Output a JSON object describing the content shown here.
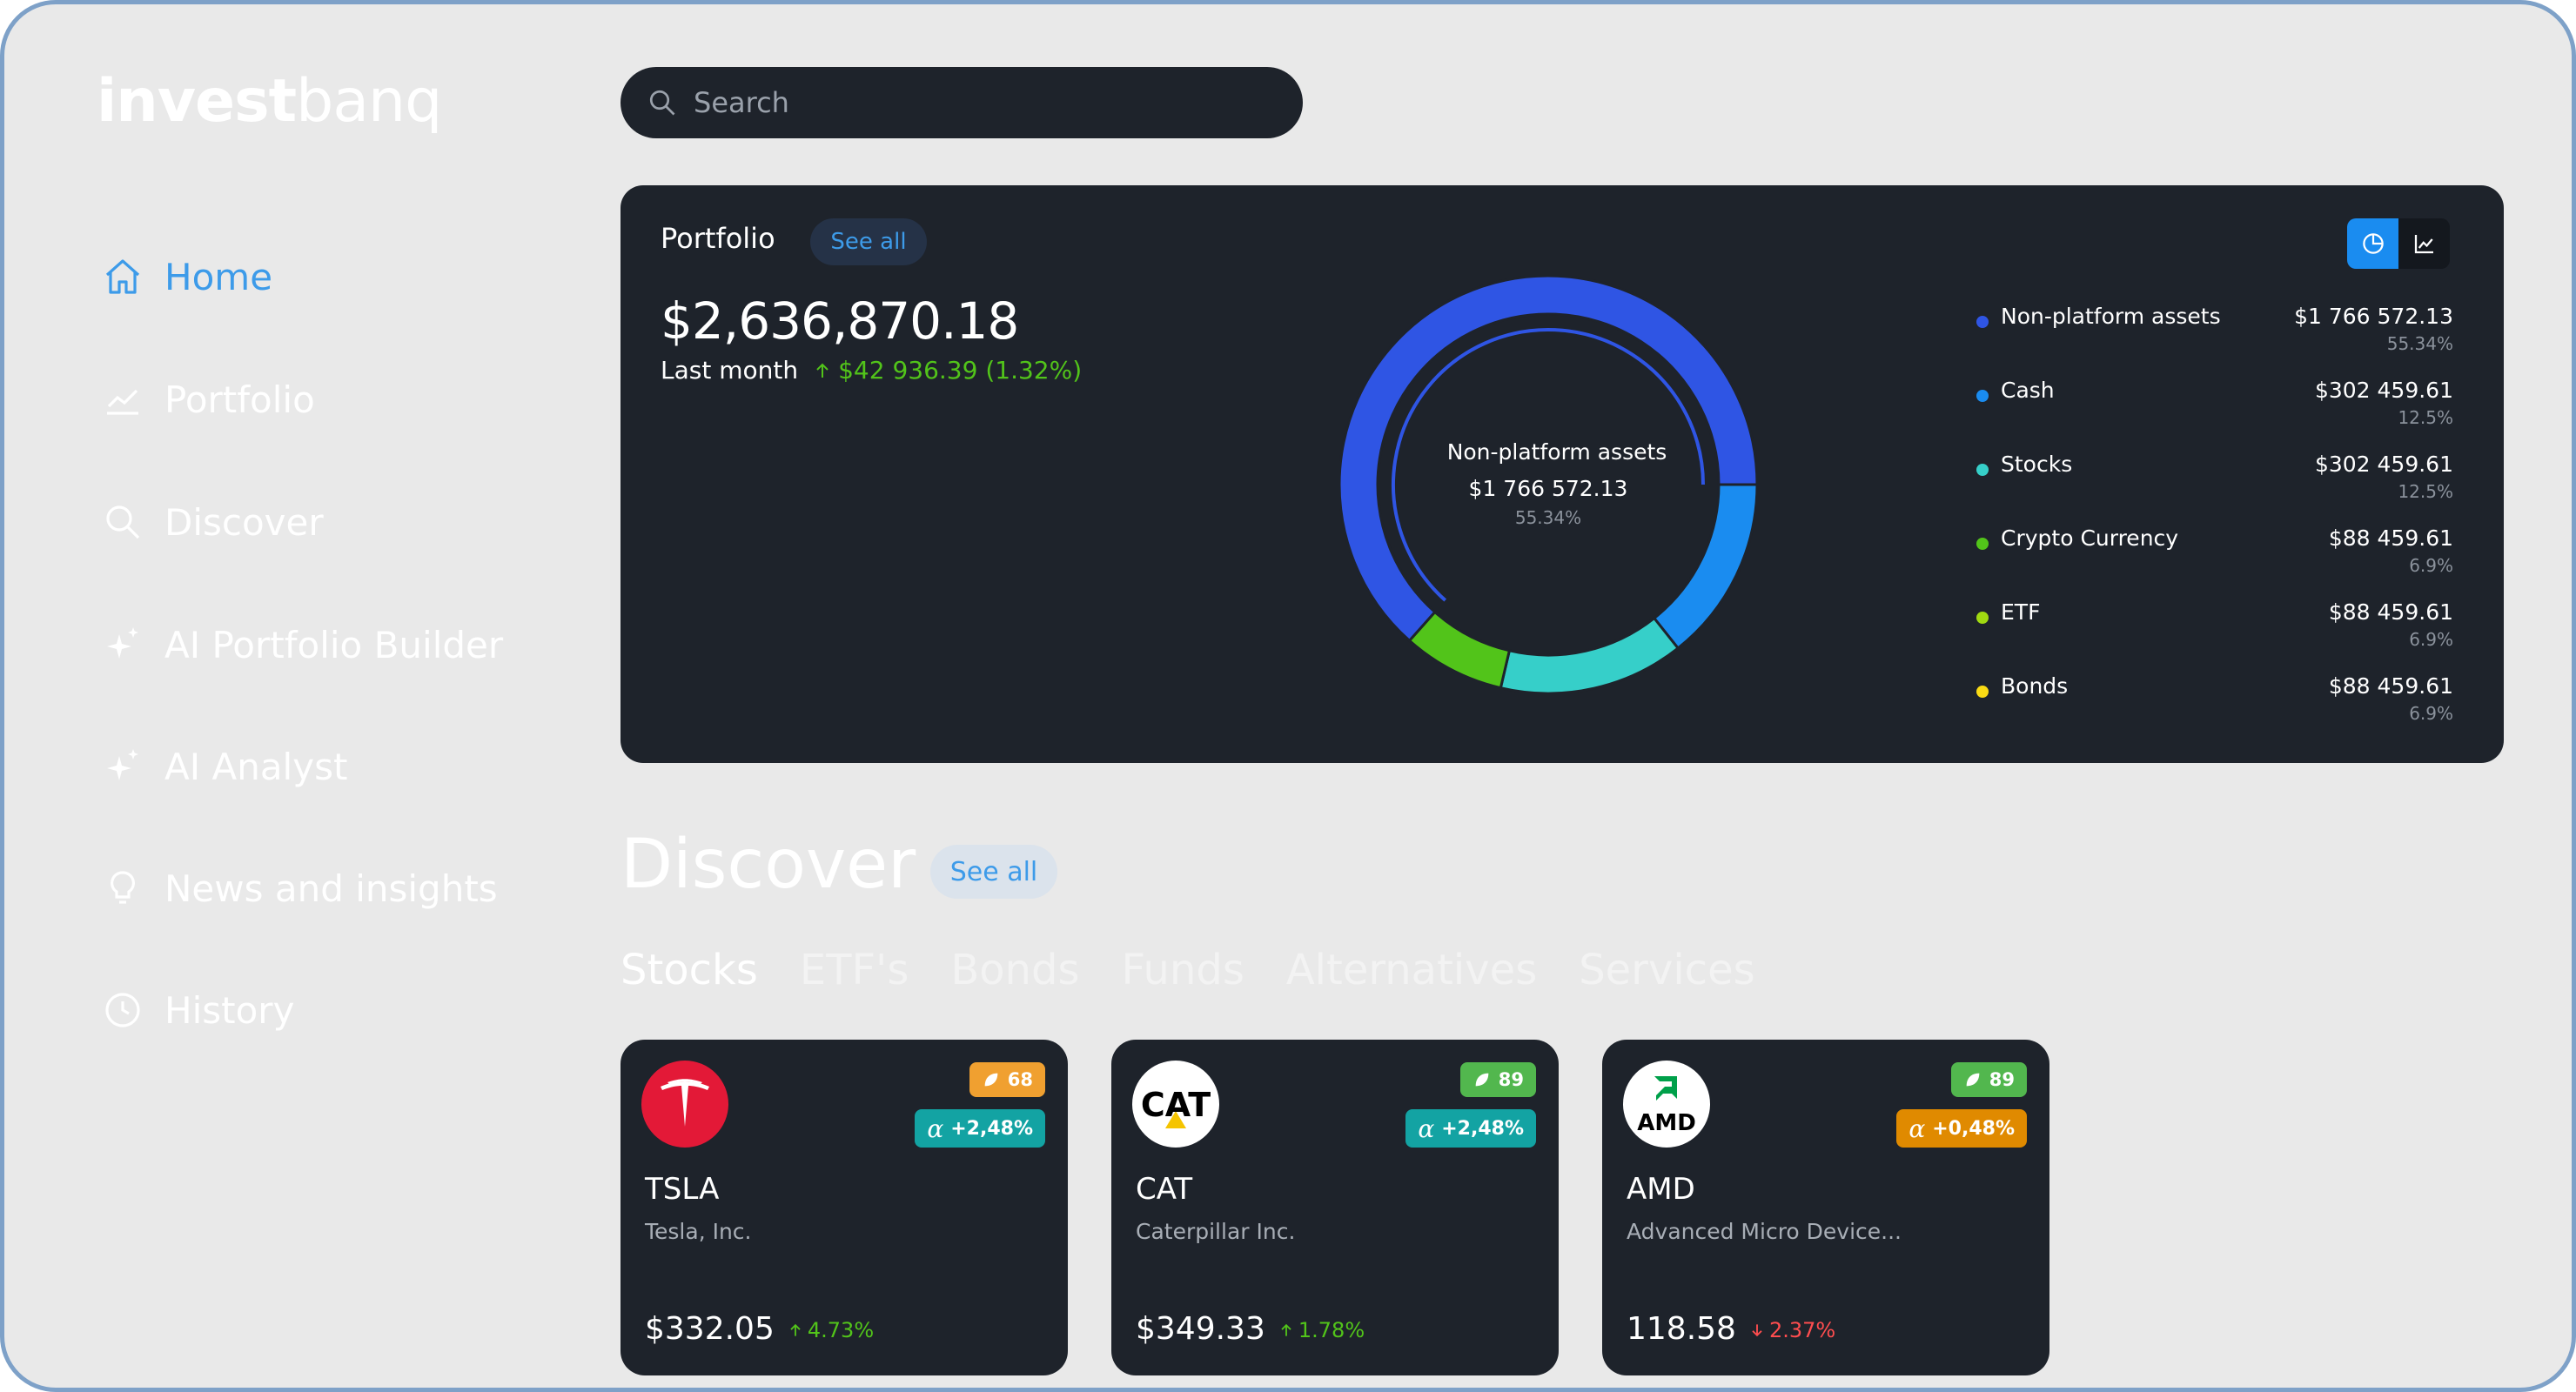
{
  "brand": {
    "bold": "invest",
    "light": "banq"
  },
  "nav": [
    {
      "label": "Home",
      "icon": "home-icon",
      "active": true
    },
    {
      "label": "Portfolio",
      "icon": "chart-line-icon"
    },
    {
      "label": "Discover",
      "icon": "search-icon"
    },
    {
      "label": "AI Portfolio Builder",
      "icon": "sparkle-icon"
    },
    {
      "label": "AI Analyst",
      "icon": "sparkle-icon"
    },
    {
      "label": "News and insights",
      "icon": "lightbulb-icon"
    },
    {
      "label": "History",
      "icon": "clock-icon"
    }
  ],
  "search": {
    "placeholder": "Search"
  },
  "portfolio": {
    "title": "Portfolio",
    "see_all": "See all",
    "total": "$2,636,870.18",
    "period": "Last month",
    "change": "$42 936.39 (1.32%)",
    "change_direction": "up",
    "view_toggle": {
      "active": "pie-chart-icon",
      "options": [
        "pie-chart-icon",
        "line-chart-icon"
      ]
    },
    "donut_center": {
      "label": "Non-platform assets",
      "value": "$1 766 572.13",
      "pct": "55.34%"
    },
    "allocation": [
      {
        "name": "Non-platform assets",
        "value": "$1 766 572.13",
        "pct": "55.34%",
        "share": 55.34,
        "color": "#2f55e4"
      },
      {
        "name": "Cash",
        "value": "$302 459.61",
        "pct": "12.5%",
        "share": 12.5,
        "color": "#1a8cf0"
      },
      {
        "name": "Stocks",
        "value": "$302 459.61",
        "pct": "12.5%",
        "share": 12.5,
        "color": "#36cfc9"
      },
      {
        "name": "Crypto Currency",
        "value": "$88 459.61",
        "pct": "6.9%",
        "share": 6.9,
        "color": "#52c41a"
      },
      {
        "name": "ETF",
        "value": "$88 459.61",
        "pct": "6.9%",
        "share": 6.9,
        "color": "#a0d911"
      },
      {
        "name": "Bonds",
        "value": "$88 459.61",
        "pct": "6.9%",
        "share": 6.9,
        "color": "#fadb14"
      }
    ]
  },
  "discover": {
    "title": "Discover",
    "see_all": "See all",
    "tabs": [
      "Stocks",
      "ETF's",
      "Bonds",
      "Funds",
      "Alternatives",
      "Services"
    ],
    "active_tab": "Stocks",
    "cards": [
      {
        "ticker": "TSLA",
        "name": "Tesla, Inc.",
        "score": "68",
        "score_color": "#f0a030",
        "alpha": "+2,48%",
        "alpha_color": "#13a3a3",
        "price": "$332.05",
        "change": "4.73%",
        "direction": "up",
        "logo": "tesla-logo"
      },
      {
        "ticker": "CAT",
        "name": "Caterpillar Inc.",
        "score": "89",
        "score_color": "#52b74e",
        "alpha": "+2,48%",
        "alpha_color": "#13a3a3",
        "price": "$349.33",
        "change": "1.78%",
        "direction": "up",
        "logo": "cat-logo",
        "logo_text": "CAT"
      },
      {
        "ticker": "AMD",
        "name": "Advanced Micro Device...",
        "score": "89",
        "score_color": "#52b74e",
        "alpha": "+0,48%",
        "alpha_color": "#e08a00",
        "price": "118.58",
        "change": "2.37%",
        "direction": "down",
        "logo": "amd-logo",
        "logo_text": "AMD"
      }
    ]
  }
}
